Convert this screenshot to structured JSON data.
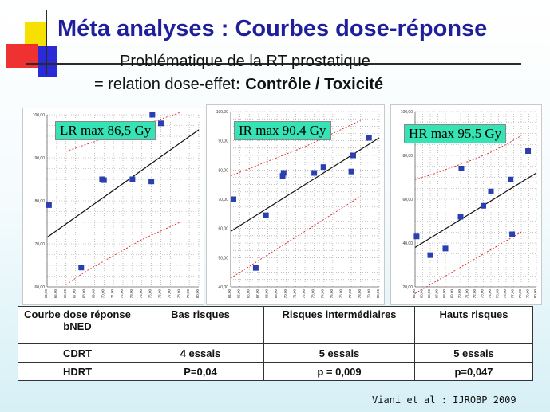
{
  "slide": {
    "title": "Méta analyses : Courbes dose-réponse",
    "subtitle_line1": "Problématique  de la RT prostatique",
    "subtitle_line2_prefix": "= relation  dose-effet",
    "subtitle_line2_bold": ": Contrôle / Toxicité",
    "citation": "Viani et al : IJROBP 2009",
    "logo_colors": {
      "yellow": "#f6e000",
      "red": "#ee2020",
      "blue": "#2a2ad8"
    }
  },
  "chart_data": [
    {
      "type": "scatter",
      "title": "LR max 86,5 Gy",
      "ylim": [
        60,
        100
      ],
      "xlim": [
        64,
        80
      ],
      "yticks": [
        "60,00",
        "70,00",
        "80,00",
        "90,00",
        "100,00"
      ],
      "ytick_values": [
        60,
        70,
        80,
        90,
        100
      ],
      "xticks": [
        "64,00",
        "65,00",
        "66,00",
        "67,00",
        "68,00",
        "69,00",
        "70,00",
        "71,00",
        "72,00",
        "73,00",
        "74,00",
        "75,00",
        "76,00",
        "77,00",
        "78,00",
        "79,00",
        "80,00"
      ],
      "grid": true,
      "points": [
        [
          64.2,
          79
        ],
        [
          67.6,
          64.5
        ],
        [
          69.8,
          85
        ],
        [
          70.0,
          84.8
        ],
        [
          73.0,
          85
        ],
        [
          75.0,
          84.5
        ],
        [
          75.1,
          100
        ],
        [
          76.0,
          98
        ]
      ],
      "fit_line": [
        [
          64,
          71.5
        ],
        [
          80,
          96.5
        ]
      ],
      "ci_upper": [
        [
          66,
          91.5
        ],
        [
          68,
          93
        ],
        [
          70,
          94.5
        ],
        [
          72,
          96
        ],
        [
          74,
          97.5
        ],
        [
          76,
          99
        ],
        [
          78,
          100.5
        ]
      ],
      "ci_lower": [
        [
          66,
          60.5
        ],
        [
          68,
          63.5
        ],
        [
          70,
          66
        ],
        [
          72,
          68.5
        ],
        [
          74,
          71
        ],
        [
          76,
          73
        ],
        [
          78,
          75
        ]
      ]
    },
    {
      "type": "scatter",
      "title": "IR max 90.4 Gy",
      "ylim": [
        40,
        100
      ],
      "xlim": [
        64,
        80
      ],
      "yticks": [
        "40,00",
        "50,00",
        "60,00",
        "70,00",
        "80,00",
        "90,00",
        "100,00"
      ],
      "ytick_values": [
        40,
        50,
        60,
        70,
        80,
        90,
        100
      ],
      "xticks": [
        "64,00",
        "65,00",
        "66,00",
        "67,00",
        "68,00",
        "69,00",
        "70,00",
        "71,00",
        "72,00",
        "73,00",
        "74,00",
        "75,00",
        "76,00",
        "77,00",
        "78,00",
        "79,00",
        "80,00"
      ],
      "grid": true,
      "points": [
        [
          64.3,
          70
        ],
        [
          66.7,
          46.5
        ],
        [
          67.8,
          64.5
        ],
        [
          69.6,
          78
        ],
        [
          69.7,
          79
        ],
        [
          73.0,
          79
        ],
        [
          74.0,
          81
        ],
        [
          77.0,
          79.5
        ],
        [
          77.2,
          85
        ],
        [
          78.9,
          91
        ]
      ],
      "fit_line": [
        [
          64,
          59
        ],
        [
          80,
          91
        ]
      ],
      "ci_upper": [
        [
          64,
          78
        ],
        [
          66,
          80.5
        ],
        [
          68,
          83
        ],
        [
          70,
          85.5
        ],
        [
          72,
          88
        ],
        [
          74,
          91
        ],
        [
          76,
          94
        ],
        [
          78,
          97
        ]
      ],
      "ci_lower": [
        [
          64,
          43
        ],
        [
          66,
          47
        ],
        [
          68,
          51
        ],
        [
          70,
          55
        ],
        [
          72,
          59
        ],
        [
          74,
          63
        ],
        [
          76,
          67
        ],
        [
          78,
          71
        ]
      ]
    },
    {
      "type": "scatter",
      "title": "HR max 95,5 Gy",
      "ylim": [
        20,
        100
      ],
      "xlim": [
        64,
        80
      ],
      "yticks": [
        "20,00",
        "40,00",
        "60,00",
        "80,00",
        "100,00"
      ],
      "ytick_values": [
        20,
        40,
        60,
        80,
        100
      ],
      "xticks": [
        "64,00",
        "65,00",
        "66,00",
        "67,00",
        "68,00",
        "69,00",
        "70,00",
        "71,00",
        "72,00",
        "73,00",
        "74,00",
        "75,00",
        "76,00",
        "77,00",
        "78,00",
        "79,00",
        "80,00"
      ],
      "grid": true,
      "points": [
        [
          64.2,
          43
        ],
        [
          66.0,
          34.5
        ],
        [
          68.0,
          37.5
        ],
        [
          70.0,
          52
        ],
        [
          70.1,
          74
        ],
        [
          73.0,
          57
        ],
        [
          74.0,
          63.5
        ],
        [
          76.6,
          69
        ],
        [
          76.8,
          44
        ],
        [
          78.9,
          82
        ]
      ],
      "fit_line": [
        [
          64,
          38
        ],
        [
          80,
          72
        ]
      ],
      "ci_upper": [
        [
          64,
          69
        ],
        [
          66,
          71
        ],
        [
          68,
          73.5
        ],
        [
          70,
          76
        ],
        [
          72,
          78.5
        ],
        [
          74,
          81.5
        ],
        [
          76,
          85
        ],
        [
          78,
          89
        ]
      ],
      "ci_lower": [
        [
          64,
          17
        ],
        [
          66,
          21
        ],
        [
          68,
          25
        ],
        [
          70,
          29
        ],
        [
          72,
          33
        ],
        [
          74,
          37
        ],
        [
          76,
          41
        ],
        [
          78,
          45
        ]
      ]
    }
  ],
  "table": {
    "headers": [
      "Courbe dose réponse bNED",
      "Bas risques",
      "Risques intermédiaires",
      "Hauts risques"
    ],
    "rows": [
      [
        "CDRT",
        "4 essais",
        "5 essais",
        "5 essais"
      ],
      [
        "HDRT",
        "P=0,04",
        "p = 0,009",
        "p=0,047"
      ]
    ]
  }
}
